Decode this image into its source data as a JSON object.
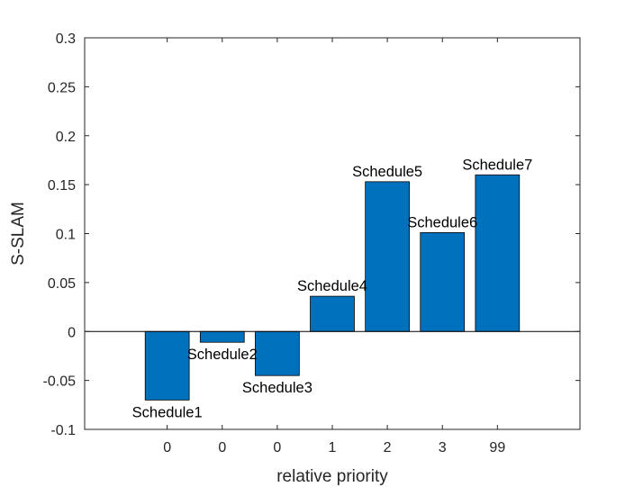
{
  "chart_data": {
    "type": "bar",
    "categories": [
      "0",
      "0",
      "0",
      "1",
      "2",
      "3",
      "99"
    ],
    "values": [
      -0.07,
      -0.011,
      -0.045,
      0.036,
      0.153,
      0.101,
      0.16
    ],
    "bar_labels": [
      "Schedule1",
      "Schedule2",
      "Schedule3",
      "Schedule4",
      "Schedule5",
      "Schedule6",
      "Schedule7"
    ],
    "xlabel": "relative priority",
    "ylabel": "S-SLAM",
    "ylim": [
      -0.1,
      0.3
    ],
    "yticks": [
      "-0.1",
      "-0.05",
      "0",
      "0.05",
      "0.1",
      "0.15",
      "0.2",
      "0.25",
      "0.3"
    ],
    "bar_color": "#0072BD",
    "grid": false
  }
}
